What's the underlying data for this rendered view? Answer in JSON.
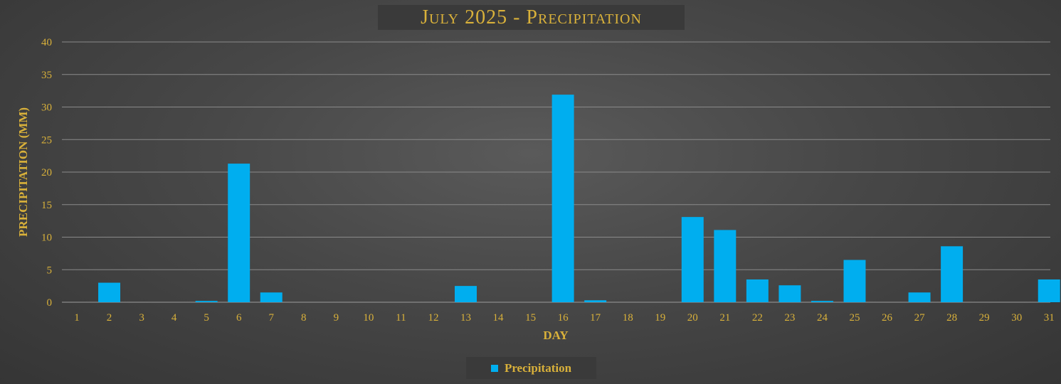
{
  "colors": {
    "bar": "#00aeef",
    "text": "#d9b13a",
    "grid": "#8a8a8a"
  },
  "chart_data": {
    "type": "bar",
    "title": "July 2025 - Precipitation",
    "xlabel": "DAY",
    "ylabel": "PRECIPITATION (MM)",
    "ylim": [
      0,
      40
    ],
    "yticks": [
      0,
      5,
      10,
      15,
      20,
      25,
      30,
      35,
      40
    ],
    "grid": true,
    "legend_position": "bottom",
    "categories": [
      "1",
      "2",
      "3",
      "4",
      "5",
      "6",
      "7",
      "8",
      "9",
      "10",
      "11",
      "12",
      "13",
      "14",
      "15",
      "16",
      "17",
      "18",
      "19",
      "20",
      "21",
      "22",
      "23",
      "24",
      "25",
      "26",
      "27",
      "28",
      "29",
      "30",
      "31"
    ],
    "series": [
      {
        "name": "Precipitation",
        "values": [
          0,
          3.0,
          0,
          0,
          0.2,
          21.3,
          1.5,
          0,
          0,
          0,
          0,
          0,
          2.5,
          0,
          0,
          31.9,
          0.3,
          0,
          0,
          13.1,
          11.1,
          3.5,
          2.6,
          0.2,
          6.5,
          0,
          1.5,
          8.6,
          0,
          0,
          3.5
        ]
      }
    ]
  }
}
